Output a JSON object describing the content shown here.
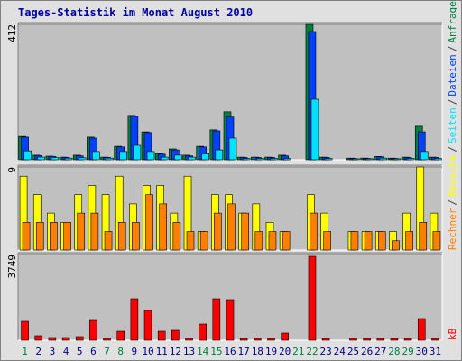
{
  "chart_data": [
    {
      "type": "bar",
      "title": "Tages-Statistik im Monat August 2010",
      "ylim": [
        0,
        412
      ],
      "yticks": [
        412
      ],
      "series": [
        {
          "name": "Anfragen",
          "color": "#008040",
          "values": [
            71,
            14,
            11,
            8,
            14,
            69,
            8,
            41,
            135,
            85,
            19,
            33,
            14,
            41,
            91,
            146,
            8,
            8,
            8,
            14,
            0,
            412,
            8,
            0,
            5,
            5,
            10,
            5,
            8,
            102,
            8
          ]
        },
        {
          "name": "Dateien",
          "color": "#0040ff",
          "values": [
            69,
            13,
            10,
            7,
            12,
            66,
            7,
            39,
            132,
            83,
            17,
            30,
            12,
            39,
            88,
            130,
            7,
            7,
            7,
            12,
            0,
            390,
            7,
            0,
            4,
            4,
            9,
            4,
            7,
            85,
            7
          ]
        },
        {
          "name": "Seiten",
          "color": "#00e0ff",
          "values": [
            27,
            8,
            7,
            5,
            6,
            25,
            5,
            25,
            44,
            25,
            8,
            14,
            8,
            18,
            30,
            66,
            4,
            4,
            4,
            4,
            0,
            184,
            4,
            0,
            3,
            3,
            5,
            3,
            4,
            25,
            4
          ]
        }
      ]
    },
    {
      "type": "bar",
      "ylim": [
        0,
        9
      ],
      "yticks": [
        9
      ],
      "series": [
        {
          "name": "Besuche",
          "color": "#ffff00",
          "values": [
            8,
            6,
            4,
            3,
            6,
            7,
            6,
            8,
            5,
            7,
            7,
            4,
            8,
            2,
            6,
            6,
            4,
            5,
            3,
            2,
            0,
            6,
            4,
            0,
            2,
            2,
            2,
            2,
            4,
            9,
            4
          ]
        },
        {
          "name": "Rechner",
          "color": "#ff8000",
          "values": [
            3,
            3,
            3,
            3,
            4,
            4,
            2,
            3,
            3,
            6,
            5,
            3,
            2,
            2,
            4,
            5,
            4,
            2,
            2,
            2,
            0,
            4,
            2,
            0,
            2,
            2,
            2,
            1,
            2,
            3,
            2
          ]
        }
      ]
    },
    {
      "type": "bar",
      "ylim": [
        0,
        3749
      ],
      "yticks": [
        3749
      ],
      "categories": [
        "1",
        "2",
        "3",
        "4",
        "5",
        "6",
        "7",
        "8",
        "9",
        "10",
        "11",
        "12",
        "13",
        "14",
        "15",
        "16",
        "17",
        "18",
        "19",
        "20",
        "21",
        "22",
        "23",
        "24",
        "25",
        "26",
        "27",
        "28",
        "29",
        "30",
        "31"
      ],
      "category_colors": [
        "#008040",
        "#000080",
        "#000080",
        "#000080",
        "#000080",
        "#000080",
        "#008040",
        "#008040",
        "#000080",
        "#000080",
        "#000080",
        "#000080",
        "#000080",
        "#008040",
        "#008040",
        "#000080",
        "#000080",
        "#000080",
        "#000080",
        "#000080",
        "#008040",
        "#008040",
        "#000080",
        "#000080",
        "#000080",
        "#000080",
        "#000080",
        "#008040",
        "#008040",
        "#000080",
        "#000080"
      ],
      "series": [
        {
          "name": "kB",
          "color": "#ff0000",
          "values": [
            829,
            197,
            118,
            118,
            158,
            868,
            79,
            395,
            1815,
            1302,
            395,
            434,
            79,
            710,
            1815,
            1776,
            79,
            79,
            79,
            316,
            0,
            3670,
            79,
            0,
            79,
            79,
            79,
            79,
            79,
            947,
            79
          ]
        }
      ]
    }
  ],
  "legend_separator": "/"
}
